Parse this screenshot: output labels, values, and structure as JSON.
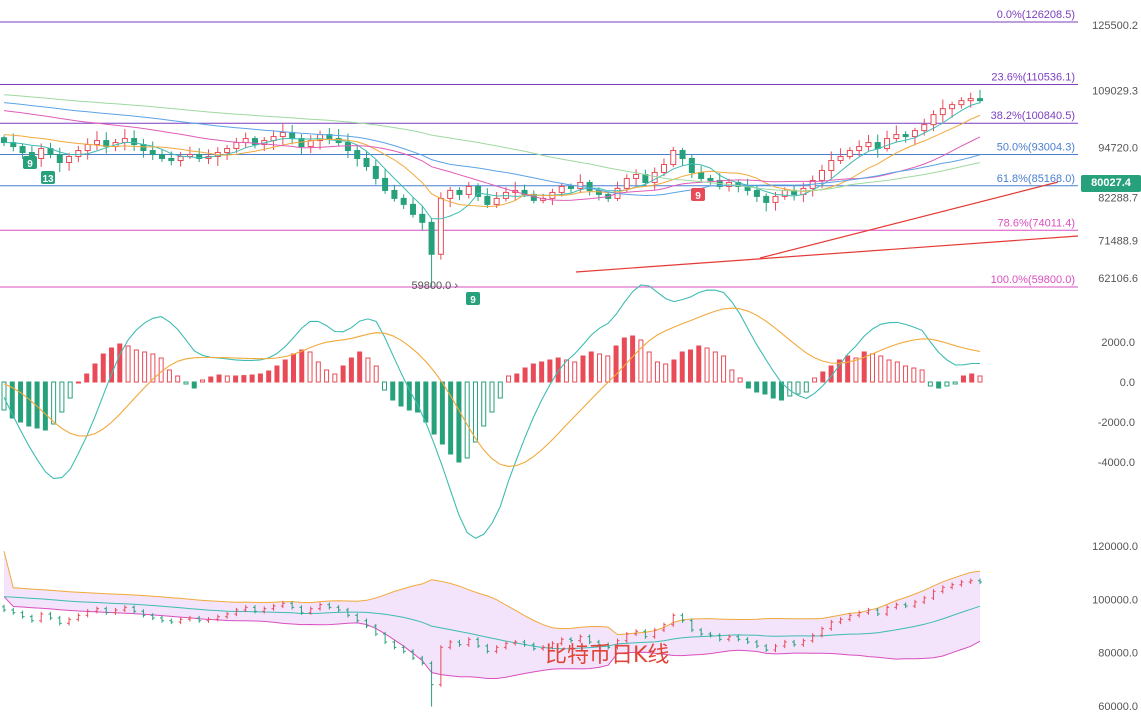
{
  "colors": {
    "up": "#e84b57",
    "down": "#26a17b",
    "fib_line": "#7b3fbf",
    "fib_line_pink": "#d94fc0",
    "fib_line_blue": "#4a7fd1",
    "ma_cyan": "#3fbcb2",
    "ma_orange": "#f2a93b",
    "ma_blue": "#5ba3e6",
    "ma_pink": "#e05cb8",
    "ma_green": "#9fd99f",
    "trend": "#e53935",
    "boll_fill": "#f3e3fb",
    "boll_upper": "#f2a93b",
    "boll_lower": "#d94fc0",
    "boll_mid": "#3fbcb2"
  },
  "watermark": "比特币日K线",
  "price_tag": "80027.4",
  "chart_data": [
    {
      "type": "candlestick",
      "title": "",
      "y_ticks": [
        "125500.2",
        "109029.3",
        "94720.0",
        "82288.7",
        "71488.9",
        "62106.6"
      ],
      "fib_levels": [
        {
          "label": "0.0%(126208.5)",
          "value": 126208.5
        },
        {
          "label": "23.6%(110536.1)",
          "value": 110536.1
        },
        {
          "label": "38.2%(100840.5)",
          "value": 100840.5
        },
        {
          "label": "50.0%(93004.3)",
          "value": 93004.3
        },
        {
          "label": "61.8%(85168.0)",
          "value": 85168.0
        },
        {
          "label": "78.6%(74011.4)",
          "value": 74011.4
        },
        {
          "label": "100.0%(59800.0)",
          "value": 59800.0
        }
      ],
      "low_annotation": "59800.0",
      "td_markers": [
        "9",
        "13",
        "9",
        "9"
      ],
      "ohlc_close_approx": [
        96000,
        95000,
        93500,
        92000,
        94500,
        93000,
        91000,
        92500,
        94000,
        95500,
        96500,
        95000,
        96000,
        97000,
        95500,
        94000,
        93000,
        92000,
        91500,
        92500,
        93000,
        92000,
        92500,
        93500,
        94500,
        96000,
        97000,
        95500,
        96500,
        97500,
        98500,
        97000,
        95000,
        96500,
        98000,
        97000,
        96000,
        94000,
        92000,
        90000,
        87000,
        84000,
        82000,
        80500,
        78000,
        76000,
        68000,
        82000,
        84000,
        83000,
        85000,
        82500,
        80500,
        82000,
        83500,
        84000,
        83000,
        81500,
        82000,
        83500,
        85000,
        84500,
        86000,
        84000,
        83000,
        82000,
        84500,
        87000,
        88000,
        86000,
        88500,
        90500,
        94000,
        92000,
        88500,
        87000,
        86500,
        85000,
        86000,
        85000,
        84000,
        82500,
        81000,
        82500,
        84000,
        83000,
        84500,
        86500,
        89000,
        91500,
        92500,
        94000,
        95000,
        96000,
        94500,
        97000,
        98000,
        97500,
        99000,
        100500,
        103000,
        104500,
        105500,
        106500,
        107000,
        106500
      ]
    },
    {
      "type": "macd",
      "y_ticks": [
        "2000.0",
        "0.0",
        "-2000.0",
        "-4000.0"
      ],
      "histogram": [
        -1400,
        -1800,
        -2000,
        -2200,
        -2300,
        -2400,
        -2100,
        -1500,
        -800,
        0,
        400,
        900,
        1400,
        1700,
        1900,
        1800,
        1600,
        1500,
        1400,
        1200,
        600,
        300,
        -100,
        -300,
        100,
        250,
        350,
        300,
        300,
        320,
        350,
        400,
        550,
        800,
        1100,
        1400,
        1600,
        1500,
        1000,
        600,
        400,
        800,
        1200,
        1500,
        1200,
        800,
        -400,
        -900,
        -1200,
        -1400,
        -1500,
        -2000,
        -2600,
        -3100,
        -3600,
        -4000,
        -3800,
        -3000,
        -2200,
        -1500,
        -800,
        300,
        400,
        700,
        900,
        1000,
        1100,
        1200,
        1100,
        1000,
        1300,
        1500,
        1400,
        1300,
        1800,
        2200,
        2300,
        2100,
        1500,
        1000,
        900,
        1100,
        1500,
        1600,
        1800,
        1700,
        1500,
        1300,
        600,
        200,
        -300,
        -500,
        -600,
        -800,
        -900,
        -700,
        -600,
        -500,
        200,
        500,
        800,
        1100,
        1300,
        1200,
        1500,
        1400,
        1300,
        1100,
        1000,
        800,
        700,
        600,
        -200,
        -300,
        -200,
        -100,
        300,
        400,
        300
      ]
    },
    {
      "type": "bollinger",
      "y_ticks": [
        "120000.0",
        "100000.0",
        "80000.0",
        "60000.0"
      ]
    }
  ]
}
